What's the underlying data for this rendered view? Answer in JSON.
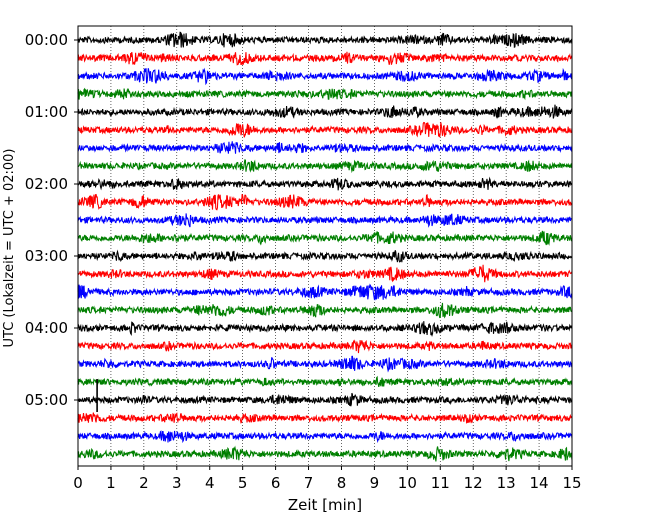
{
  "chart_data": {
    "type": "line",
    "title": "",
    "xlabel": "Zeit  [min]",
    "ylabel": "UTC (Lokalzeit = UTC + 02:00)",
    "xlim": [
      0,
      15
    ],
    "x_ticks": [
      "0",
      "1",
      "2",
      "3",
      "4",
      "5",
      "6",
      "7",
      "8",
      "9",
      "10",
      "11",
      "12",
      "13",
      "14",
      "15"
    ],
    "y_tick_labels": [
      "00:00",
      "01:00",
      "02:00",
      "03:00",
      "04:00",
      "05:00"
    ],
    "grid": "vertical dotted",
    "trace_interval_min": 15,
    "trace_count": 24,
    "trace_colors": [
      "#000000",
      "#ff0000",
      "#0000ff",
      "#008000"
    ],
    "series_description": "helicorder seismogram traces, one per 15 minutes starting 00:00"
  }
}
